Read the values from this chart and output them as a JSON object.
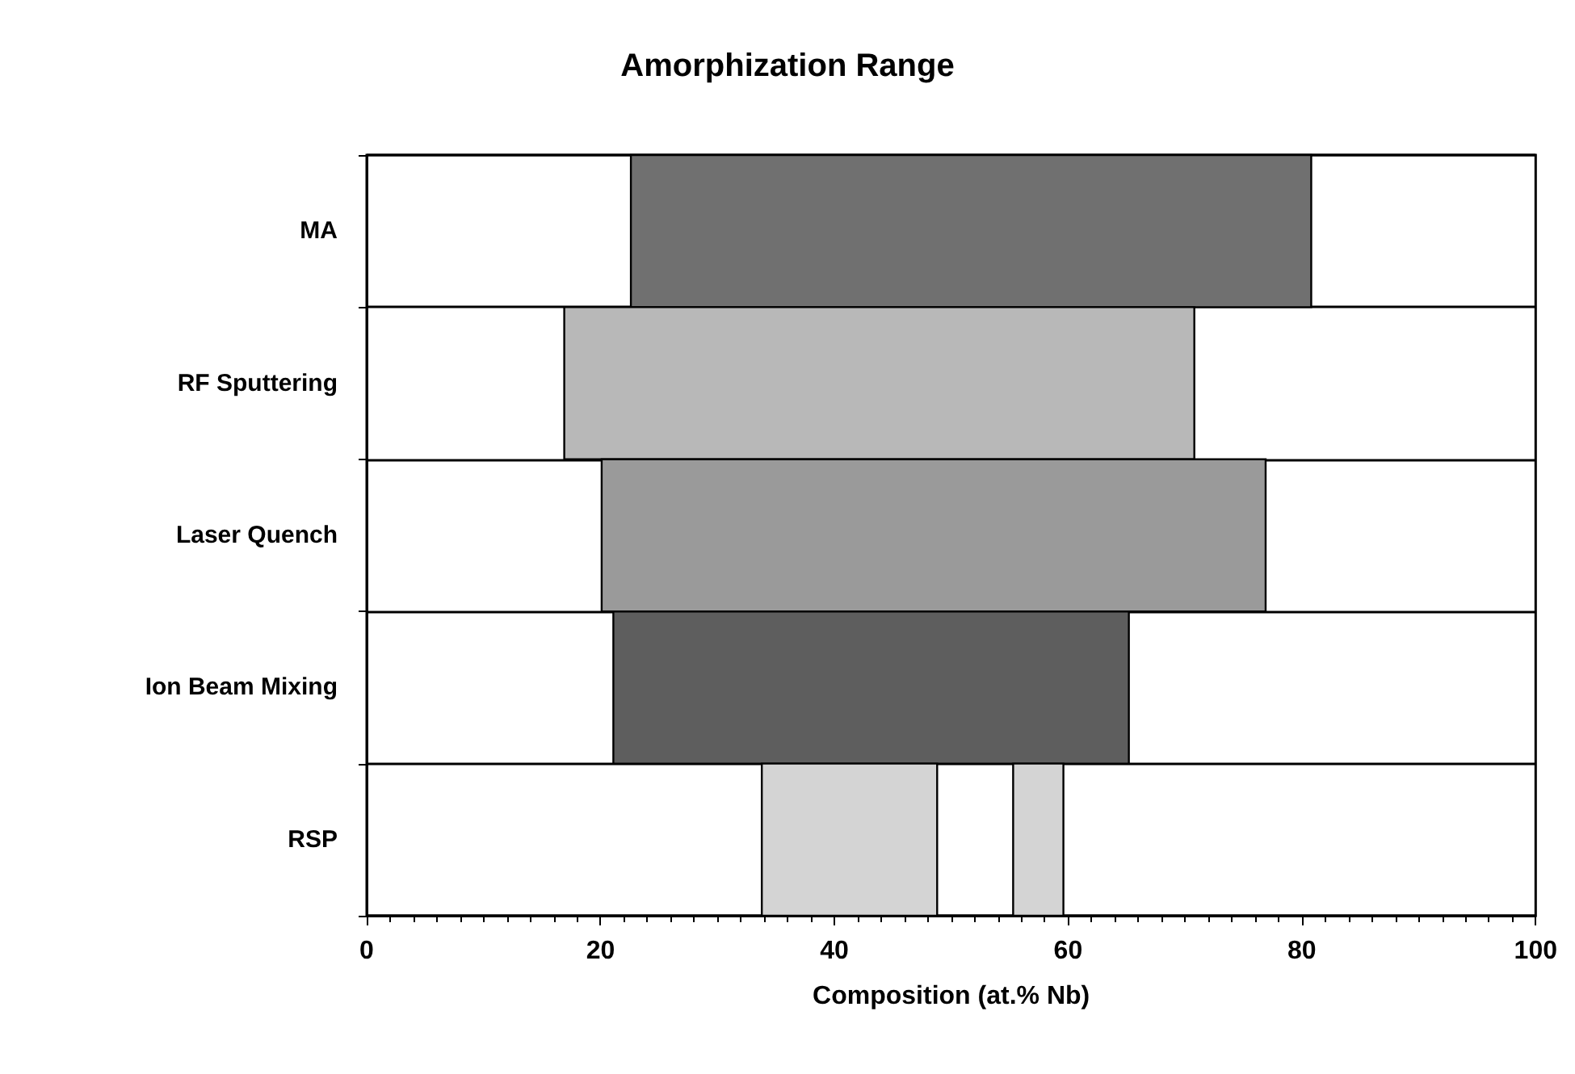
{
  "chart_data": {
    "type": "bar",
    "orientation": "horizontal",
    "title": "Amorphization Range",
    "xlabel": "Composition (at.% Nb)",
    "categories": [
      "MA",
      "RF Sputtering",
      "Laser Quench",
      "Ion Beam Mixing",
      "RSP"
    ],
    "series": [
      {
        "colors": [
          "#707070",
          "#b8b8b8",
          "#9a9a9a",
          "#5e5e5e",
          "#d4d4d4"
        ],
        "base": [
          22.6,
          16.9,
          20.1,
          21.1,
          33.8
        ],
        "values": [
          58.2,
          53.9,
          56.8,
          44.1,
          15.0
        ]
      },
      {
        "colors": [
          null,
          null,
          null,
          null,
          "#d4d4d4"
        ],
        "base": [
          null,
          null,
          null,
          null,
          55.3
        ],
        "values": [
          null,
          null,
          null,
          null,
          4.3
        ]
      }
    ],
    "xlim": [
      0,
      100
    ],
    "xticks": [
      0,
      20,
      40,
      60,
      80,
      100
    ],
    "grid": "y"
  }
}
